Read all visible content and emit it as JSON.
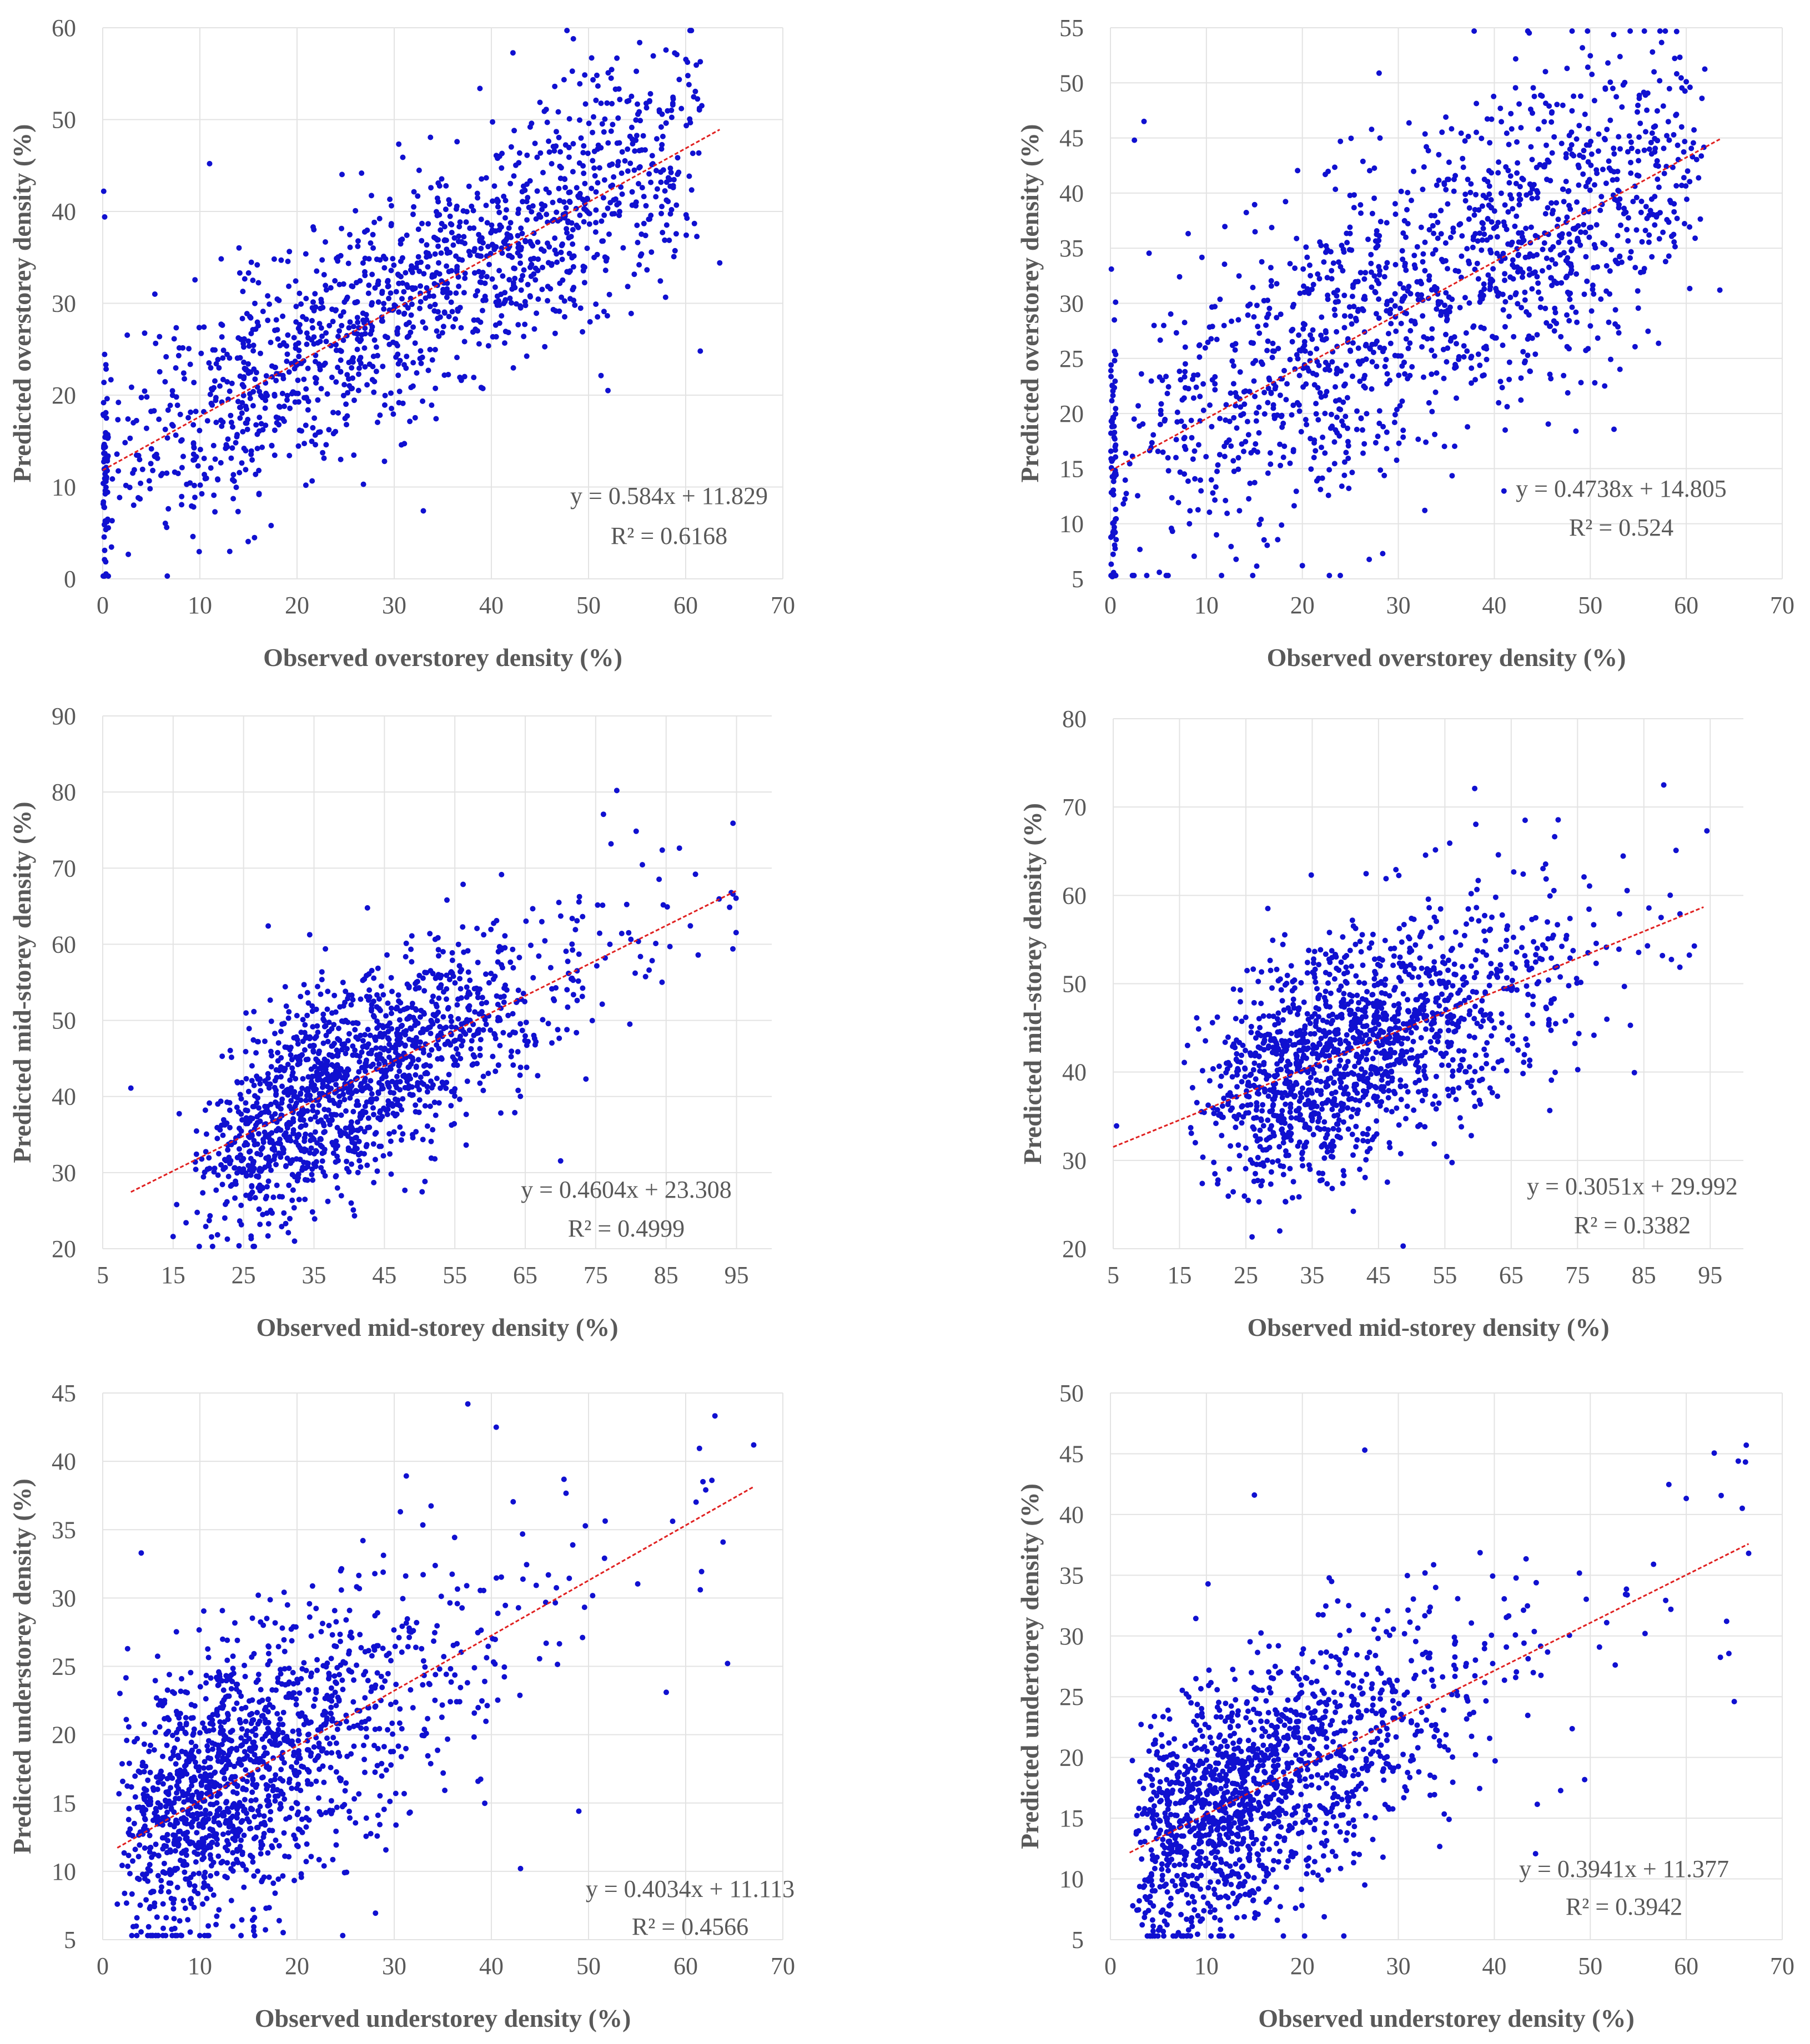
{
  "figure": {
    "panels_count": 6
  },
  "chart_data": [
    {
      "type": "scatter",
      "xlabel": "Observed overstorey density (%)",
      "ylabel": "Predicted overstorey density (%)",
      "xlim": [
        0,
        70
      ],
      "ylim": [
        0,
        60
      ],
      "xticks": [
        0,
        10,
        20,
        30,
        40,
        50,
        60,
        70
      ],
      "yticks": [
        0,
        10,
        20,
        30,
        40,
        50,
        60
      ],
      "grid": true,
      "point_color": "#1010d0",
      "trend_color": "#e02020",
      "trendline": {
        "slope": 0.584,
        "intercept": 11.829,
        "x_range": [
          0,
          63.5
        ]
      },
      "equation": "y = 0.584x + 11.829",
      "r2_label": "R² = 0.6168",
      "n_points": 1500,
      "noise_sd": 6.3,
      "x_distribution": {
        "mode": "beta",
        "a": 1.6,
        "b": 1.4,
        "max": 62,
        "zero_cluster": 0.04
      },
      "seed": 11,
      "series": [
        {
          "name": "sample",
          "points": [
            [
              61.5,
              56.3
            ],
            [
              0.1,
              42.2
            ],
            [
              0.2,
              39.4
            ],
            [
              11,
              45.2
            ],
            [
              63.5,
              34.4
            ],
            [
              61.5,
              24.8
            ],
            [
              52,
              20.5
            ],
            [
              33,
              7.4
            ],
            [
              29,
              12.8
            ],
            [
              0.2,
              3.1
            ]
          ]
        }
      ]
    },
    {
      "type": "scatter",
      "xlabel": "Observed overstorey density (%)",
      "ylabel": "Predicted overstorey density (%)",
      "xlim": [
        0,
        70
      ],
      "ylim": [
        5,
        55
      ],
      "xticks": [
        0,
        10,
        20,
        30,
        40,
        50,
        60,
        70
      ],
      "yticks": [
        5,
        10,
        15,
        20,
        25,
        30,
        35,
        40,
        45,
        50,
        55
      ],
      "grid": true,
      "point_color": "#1010d0",
      "trend_color": "#e02020",
      "trendline": {
        "slope": 0.4738,
        "intercept": 14.805,
        "x_range": [
          0,
          63.5
        ]
      },
      "equation": "y = 0.4738x + 14.805",
      "r2_label": "R² = 0.524",
      "n_points": 1500,
      "noise_sd": 7.0,
      "x_distribution": {
        "mode": "beta",
        "a": 1.6,
        "b": 1.4,
        "max": 62,
        "zero_cluster": 0.04
      },
      "seed": 23,
      "series": [
        {
          "name": "sample",
          "points": [
            [
              60,
              50.1
            ],
            [
              3.5,
              46.5
            ],
            [
              2.5,
              44.8
            ],
            [
              0.1,
              33.1
            ],
            [
              63.5,
              31.2
            ],
            [
              20,
              6.2
            ],
            [
              0.2,
              5.2
            ],
            [
              48.5,
              18.4
            ],
            [
              51.5,
              22.5
            ]
          ]
        }
      ]
    },
    {
      "type": "scatter",
      "xlabel": "Observed mid-storey density (%)",
      "ylabel": "Predicted mid-storey density (%)",
      "xlim": [
        5,
        100
      ],
      "ylim": [
        20,
        90
      ],
      "xticks": [
        5,
        15,
        25,
        35,
        45,
        55,
        65,
        75,
        85,
        95
      ],
      "yticks": [
        20,
        30,
        40,
        50,
        60,
        70,
        80,
        90
      ],
      "grid": true,
      "point_color": "#1010d0",
      "trend_color": "#e02020",
      "trendline": {
        "slope": 0.4604,
        "intercept": 23.308,
        "x_range": [
          9,
          95
        ]
      },
      "equation": "y = 0.4604x + 23.308",
      "r2_label": "R² = 0.4999",
      "n_points": 1500,
      "noise_sd": 6.6,
      "x_distribution": {
        "mode": "gamma",
        "shape": 4.5,
        "scale": 6.8,
        "offset": 12,
        "max": 95
      },
      "seed": 37,
      "series": [
        {
          "name": "sample",
          "points": [
            [
              78,
              80.2
            ],
            [
              9,
              41.1
            ],
            [
              15,
              21.6
            ],
            [
              28.5,
              62.4
            ],
            [
              94.5,
              75.9
            ],
            [
              94.5,
              66.6
            ],
            [
              15.5,
              25.8
            ]
          ]
        }
      ]
    },
    {
      "type": "scatter",
      "xlabel": "Observed mid-storey density (%)",
      "ylabel": "Predicted mid-storey density (%)",
      "xlim": [
        5,
        100
      ],
      "ylim": [
        20,
        80
      ],
      "xticks": [
        5,
        15,
        25,
        35,
        45,
        55,
        65,
        75,
        85,
        95
      ],
      "yticks": [
        20,
        30,
        40,
        50,
        60,
        70,
        80
      ],
      "grid": true,
      "point_color": "#1010d0",
      "trend_color": "#e02020",
      "trendline": {
        "slope": 0.3051,
        "intercept": 29.992,
        "x_range": [
          5,
          94
        ]
      },
      "equation": "y = 0.3051x + 29.992",
      "r2_label": "R² = 0.3382",
      "n_points": 1500,
      "noise_sd": 6.2,
      "x_distribution": {
        "mode": "gamma",
        "shape": 4.5,
        "scale": 6.8,
        "offset": 12,
        "max": 95
      },
      "seed": 51,
      "series": [
        {
          "name": "sample",
          "points": [
            [
              88,
              72.5
            ],
            [
              59.5,
              72.1
            ],
            [
              5.5,
              33.9
            ],
            [
              94.5,
              67.3
            ],
            [
              27,
              25.3
            ],
            [
              31,
              25.3
            ]
          ]
        }
      ]
    },
    {
      "type": "scatter",
      "xlabel": "Observed understorey density (%)",
      "ylabel": "Predicted understorey density (%)",
      "xlim": [
        0,
        70
      ],
      "ylim": [
        5,
        45
      ],
      "xticks": [
        0,
        10,
        20,
        30,
        40,
        50,
        60,
        70
      ],
      "yticks": [
        5,
        10,
        15,
        20,
        25,
        30,
        35,
        40,
        45
      ],
      "grid": true,
      "point_color": "#1010d0",
      "trend_color": "#e02020",
      "trendline": {
        "slope": 0.4034,
        "intercept": 11.113,
        "x_range": [
          1.5,
          67
        ]
      },
      "equation": "y = 0.4034x + 11.113",
      "r2_label": "R² = 0.4566",
      "n_points": 1500,
      "noise_sd": 5.0,
      "x_distribution": {
        "mode": "gamma",
        "shape": 2.1,
        "scale": 7.2,
        "offset": 1.5,
        "max": 67
      },
      "seed": 67,
      "series": [
        {
          "name": "sample",
          "points": [
            [
              40.5,
              42.5
            ],
            [
              67,
              41.2
            ],
            [
              1.5,
              7.6
            ],
            [
              8.5,
              7.3
            ],
            [
              49,
              14.4
            ],
            [
              43,
              10.2
            ],
            [
              58,
              23.1
            ],
            [
              61.5,
              30.6
            ]
          ]
        }
      ]
    },
    {
      "type": "scatter",
      "xlabel": "Observed understorey density (%)",
      "ylabel": "Predicted undertorey density (%)",
      "xlim": [
        0,
        70
      ],
      "ylim": [
        5,
        50
      ],
      "xticks": [
        0,
        10,
        20,
        30,
        40,
        50,
        60,
        70
      ],
      "yticks": [
        5,
        10,
        15,
        20,
        25,
        30,
        35,
        40,
        45,
        50
      ],
      "grid": true,
      "point_color": "#1010d0",
      "trend_color": "#e02020",
      "trendline": {
        "slope": 0.3941,
        "intercept": 11.377,
        "x_range": [
          2,
          66.5
        ]
      },
      "equation": "y = 0.3941x + 11.377",
      "r2_label": "R² = 0.3942",
      "n_points": 1500,
      "noise_sd": 5.2,
      "x_distribution": {
        "mode": "gamma",
        "shape": 2.1,
        "scale": 7.2,
        "offset": 2,
        "max": 67
      },
      "seed": 79,
      "series": [
        {
          "name": "sample",
          "points": [
            [
              26.5,
              45.3
            ],
            [
              15,
              41.6
            ],
            [
              66.5,
              36.8
            ],
            [
              65,
              24.6
            ],
            [
              3,
              8.2
            ],
            [
              26.5,
              9.5
            ]
          ]
        }
      ]
    }
  ]
}
